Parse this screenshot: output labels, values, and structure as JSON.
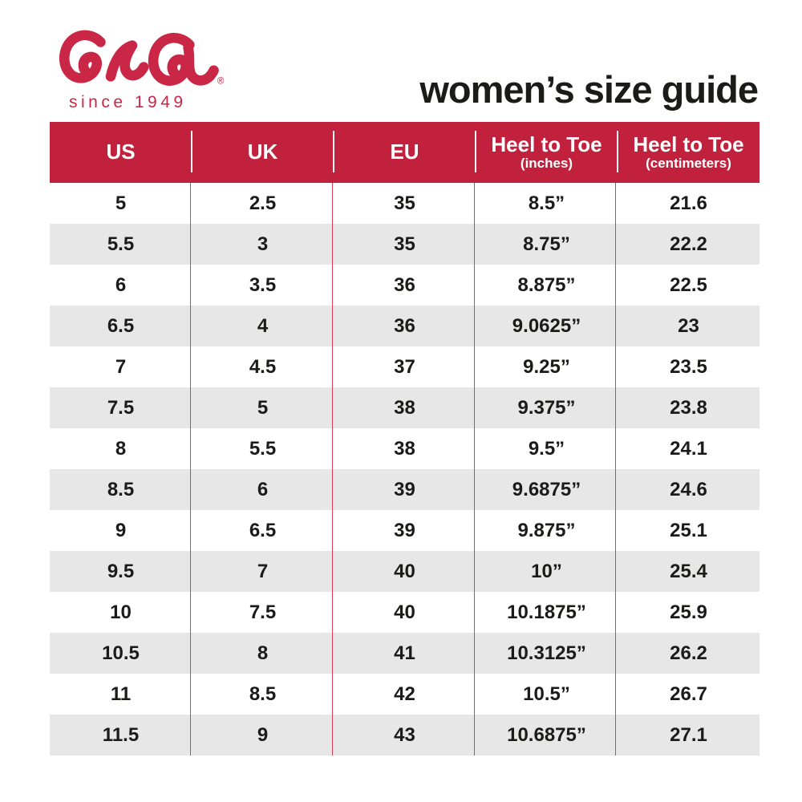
{
  "brand": {
    "logo_text": "ara",
    "tagline": "since 1949",
    "registered_mark": "®",
    "logo_color": "#C92745"
  },
  "page_title": "women’s size guide",
  "colors": {
    "header_bg": "#C2213D",
    "header_text": "#FFFFFF",
    "row_bg": "#FFFFFF",
    "row_alt_bg": "#E7E7E7",
    "divider_red": "#D84058",
    "text": "#1B1B1A",
    "brand_red": "#C5213F"
  },
  "table": {
    "columns": [
      {
        "label": "US",
        "sublabel": ""
      },
      {
        "label": "UK",
        "sublabel": ""
      },
      {
        "label": "EU",
        "sublabel": ""
      },
      {
        "label": "Heel to Toe",
        "sublabel": "(inches)"
      },
      {
        "label": "Heel to Toe",
        "sublabel": "(centimeters)"
      }
    ],
    "rows": [
      [
        "5",
        "2.5",
        "35",
        "8.5”",
        "21.6"
      ],
      [
        "5.5",
        "3",
        "35",
        "8.75”",
        "22.2"
      ],
      [
        "6",
        "3.5",
        "36",
        "8.875”",
        "22.5"
      ],
      [
        "6.5",
        "4",
        "36",
        "9.0625”",
        "23"
      ],
      [
        "7",
        "4.5",
        "37",
        "9.25”",
        "23.5"
      ],
      [
        "7.5",
        "5",
        "38",
        "9.375”",
        "23.8"
      ],
      [
        "8",
        "5.5",
        "38",
        "9.5”",
        "24.1"
      ],
      [
        "8.5",
        "6",
        "39",
        "9.6875”",
        "24.6"
      ],
      [
        "9",
        "6.5",
        "39",
        "9.875”",
        "25.1"
      ],
      [
        "9.5",
        "7",
        "40",
        "10”",
        "25.4"
      ],
      [
        "10",
        "7.5",
        "40",
        "10.1875”",
        "25.9"
      ],
      [
        "10.5",
        "8",
        "41",
        "10.3125”",
        "26.2"
      ],
      [
        "11",
        "8.5",
        "42",
        "10.5”",
        "26.7"
      ],
      [
        "11.5",
        "9",
        "43",
        "10.6875”",
        "27.1"
      ]
    ]
  },
  "chart_data": {
    "type": "table",
    "title": "women’s size guide",
    "columns": [
      "US",
      "UK",
      "EU",
      "Heel to Toe (inches)",
      "Heel to Toe (centimeters)"
    ],
    "rows": [
      [
        "5",
        "2.5",
        "35",
        "8.5”",
        "21.6"
      ],
      [
        "5.5",
        "3",
        "35",
        "8.75”",
        "22.2"
      ],
      [
        "6",
        "3.5",
        "36",
        "8.875”",
        "22.5"
      ],
      [
        "6.5",
        "4",
        "36",
        "9.0625”",
        "23"
      ],
      [
        "7",
        "4.5",
        "37",
        "9.25”",
        "23.5"
      ],
      [
        "7.5",
        "5",
        "38",
        "9.375”",
        "23.8"
      ],
      [
        "8",
        "5.5",
        "38",
        "9.5”",
        "24.1"
      ],
      [
        "8.5",
        "6",
        "39",
        "9.6875”",
        "24.6"
      ],
      [
        "9",
        "6.5",
        "39",
        "9.875”",
        "25.1"
      ],
      [
        "9.5",
        "7",
        "40",
        "10”",
        "25.4"
      ],
      [
        "10",
        "7.5",
        "40",
        "10.1875”",
        "25.9"
      ],
      [
        "10.5",
        "8",
        "41",
        "10.3125”",
        "26.2"
      ],
      [
        "11",
        "8.5",
        "42",
        "10.5”",
        "26.7"
      ],
      [
        "11.5",
        "9",
        "43",
        "10.6875”",
        "27.1"
      ]
    ]
  }
}
